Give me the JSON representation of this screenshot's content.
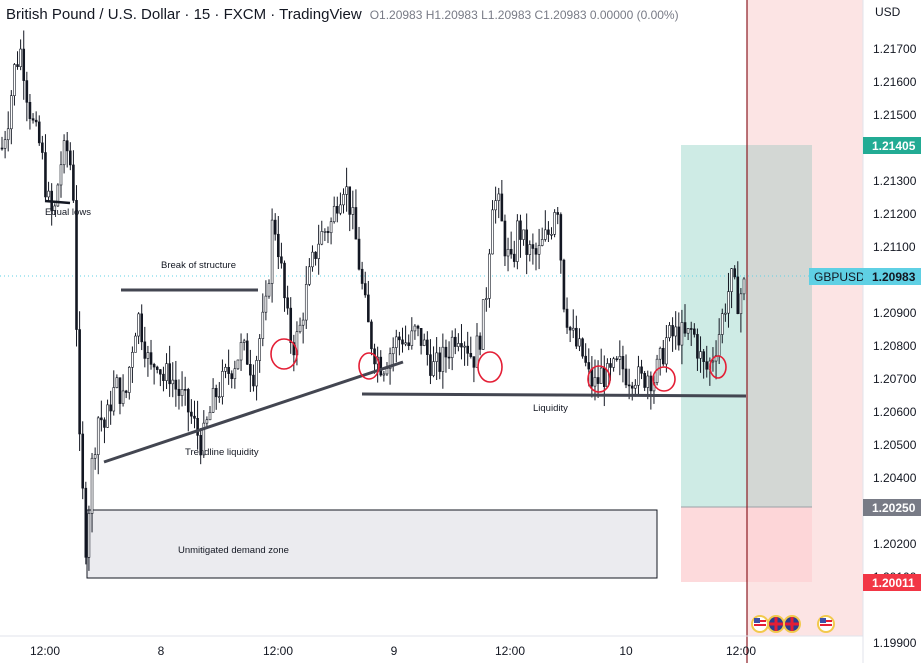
{
  "header": {
    "title": "British Pound / U.S. Dollar · 15 · FXCM · TradingView",
    "ohlc": "O1.20983 H1.20983 L1.20983 C1.20983 0.00000 (0.00%)"
  },
  "colors": {
    "candle": "#131722",
    "target_fill": "#c9e9e2",
    "stop_fill": "#fde0e0",
    "overlay_fill": "#fce4e4",
    "target_badge": "#22ab94",
    "stop_badge": "#f23645",
    "entry_badge": "#787b86",
    "last_price_badge": "#5fd0e4",
    "demand_fill": "#ebebef",
    "marker": "#e41e35",
    "divider": "#8c1a22"
  },
  "icons": [
    "us-flag-icon",
    "uk-flag-icon",
    "uk-flag-icon",
    "uk-flag-icon"
  ],
  "chart_data": {
    "type": "candlestick",
    "symbol": "GBPUSD",
    "currency": "USD",
    "ylim": [
      1.1985,
      1.221
    ],
    "y_ticks": [
      "1.21700",
      "1.21600",
      "1.21500",
      "1.21300",
      "1.21200",
      "1.21100",
      "1.20900",
      "1.20800",
      "1.20700",
      "1.20600",
      "1.20500",
      "1.20400",
      "1.20300",
      "1.20200",
      "1.20100",
      "1.19900"
    ],
    "x_ticks": [
      "12:00",
      "8",
      "12:00",
      "9",
      "12:00",
      "10",
      "12:00"
    ],
    "price_badges": {
      "target": "1.21405",
      "symbol_label": "GBPUSD",
      "last_price": "1.20983",
      "entry": "1.20250",
      "stop": "1.20011"
    },
    "position": {
      "entry": 1.2025,
      "target": 1.21405,
      "stop": 1.20011
    },
    "demand_zone": {
      "label": "Unmitigated demand zone",
      "top": 1.2025,
      "bottom": 1.2004
    },
    "annotations": {
      "equal_lows": "Equal lows",
      "break_of_structure": "Break of structure",
      "trendline_liquidity": "Trendline liquidity",
      "liquidity": "Liquidity"
    },
    "levels": {
      "break_of_structure": 1.2094,
      "liquidity": 1.2061
    },
    "close_series": [
      1.214,
      1.215,
      1.2165,
      1.217,
      1.2155,
      1.2145,
      1.214,
      1.2125,
      1.2118,
      1.2135,
      1.214,
      1.2132,
      1.205,
      1.202,
      1.2045,
      1.206,
      1.2055,
      1.2065,
      1.2068,
      1.2062,
      1.2078,
      1.209,
      1.2082,
      1.2072,
      1.2077,
      1.207,
      1.2072,
      1.2067,
      1.2064,
      1.206,
      1.2055,
      1.205,
      1.2058,
      1.2065,
      1.2068,
      1.2072,
      1.2075,
      1.2079,
      1.2077,
      1.2072,
      1.2083,
      1.2092,
      1.212,
      1.2108,
      1.209,
      1.208,
      1.2083,
      1.2095,
      1.2104,
      1.2112,
      1.2115,
      1.2117,
      1.2125,
      1.213,
      1.2122,
      1.211,
      1.2095,
      1.2083,
      1.2077,
      1.2074,
      1.2078,
      1.2081,
      1.2083,
      1.208,
      1.2084,
      1.2082,
      1.2077,
      1.2073,
      1.2075,
      1.2078,
      1.2083,
      1.2085,
      1.2081,
      1.2076,
      1.2082,
      1.2095,
      1.2125,
      1.2122,
      1.211,
      1.2103,
      1.2117,
      1.211,
      1.2108,
      1.2107,
      1.2112,
      1.2115,
      1.2127,
      1.2095,
      1.2085,
      1.208,
      1.2077,
      1.207,
      1.2068,
      1.2072,
      1.207,
      1.2073,
      1.2074,
      1.2071,
      1.2072,
      1.2069,
      1.2072,
      1.207,
      1.2075,
      1.2082,
      1.2083,
      1.2084,
      1.2082,
      1.2085,
      1.2078,
      1.2072,
      1.2076,
      1.2083,
      1.2092,
      1.21,
      1.2094,
      1.2098
    ]
  }
}
